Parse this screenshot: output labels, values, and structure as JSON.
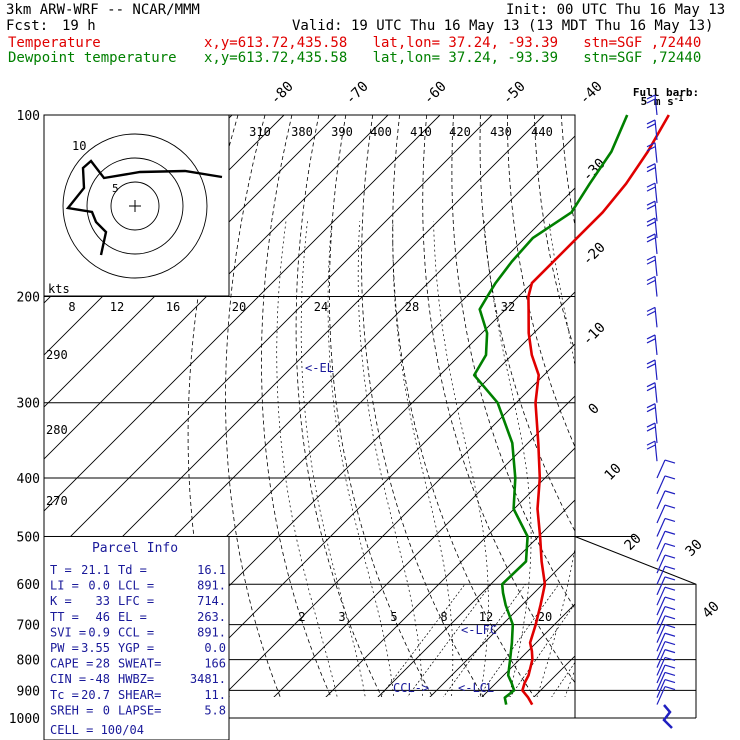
{
  "header": {
    "model": "3km ARW-WRF -- NCAR/MMM",
    "init": "Init: 00 UTC Thu 16 May 13",
    "fcst_label": "Fcst:",
    "fcst_value": "19 h",
    "valid": "Valid: 19 UTC Thu 16 May 13 (13 MDT Thu 16 May 13)",
    "temp_label": "Temperature",
    "dew_label": "Dewpoint temperature",
    "location_info": "x,y=613.72,435.58   lat,lon= 37.24, -93.39   stn=SGF ,72440"
  },
  "colors": {
    "temperature": "#e00000",
    "dewpoint": "#008000",
    "barbs": "#2020c0",
    "text": "#000000"
  },
  "chart_data": {
    "type": "skew-t",
    "pressure_axis_hpa": [
      100,
      200,
      300,
      400,
      500,
      600,
      700,
      800,
      900,
      1000
    ],
    "isotherm_labels_c": [
      -80,
      -70,
      -60,
      -50,
      -40,
      -30,
      -20,
      -10,
      0,
      10,
      20,
      30,
      40
    ],
    "theta_labels_k": [
      310,
      380,
      390,
      400,
      410,
      420,
      430,
      440
    ],
    "mixing_ratio_labels_top": [
      8,
      12,
      16,
      20,
      24,
      28,
      32
    ],
    "mixing_ratio_labels_bottom": [
      2,
      3,
      5,
      8,
      12,
      20
    ],
    "side_theta_labels": [
      290,
      280,
      270
    ],
    "temperature": {
      "name": "Temperature",
      "points": [
        [
          950,
          21.1
        ],
        [
          925,
          19
        ],
        [
          900,
          16.5
        ],
        [
          875,
          15.5
        ],
        [
          850,
          14.8
        ],
        [
          800,
          12.5
        ],
        [
          775,
          10.8
        ],
        [
          750,
          8.8
        ],
        [
          700,
          6.4
        ],
        [
          650,
          3.6
        ],
        [
          600,
          0.4
        ],
        [
          550,
          -4.6
        ],
        [
          500,
          -9.7
        ],
        [
          450,
          -15.5
        ],
        [
          400,
          -21
        ],
        [
          350,
          -28
        ],
        [
          300,
          -36.3
        ],
        [
          270,
          -41
        ],
        [
          250,
          -46.2
        ],
        [
          230,
          -51
        ],
        [
          210,
          -55.6
        ],
        [
          200,
          -58.1
        ],
        [
          190,
          -60
        ],
        [
          170,
          -60
        ],
        [
          160,
          -60
        ],
        [
          145,
          -60
        ],
        [
          130,
          -61
        ],
        [
          115,
          -63
        ],
        [
          100,
          -66
        ]
      ]
    },
    "dewpoint": {
      "name": "Dewpoint temperature",
      "points": [
        [
          950,
          16.1
        ],
        [
          925,
          14.5
        ],
        [
          900,
          14.9
        ],
        [
          875,
          13
        ],
        [
          850,
          10.9
        ],
        [
          800,
          8.2
        ],
        [
          750,
          5.3
        ],
        [
          700,
          2
        ],
        [
          650,
          -3.1
        ],
        [
          620,
          -6
        ],
        [
          600,
          -7.8
        ],
        [
          550,
          -7.6
        ],
        [
          500,
          -12.1
        ],
        [
          450,
          -20.1
        ],
        [
          400,
          -25.7
        ],
        [
          350,
          -33
        ],
        [
          300,
          -43.6
        ],
        [
          270,
          -53.4
        ],
        [
          250,
          -55
        ],
        [
          230,
          -59
        ],
        [
          210,
          -65
        ],
        [
          200,
          -66
        ],
        [
          190,
          -67
        ],
        [
          175,
          -68
        ],
        [
          160,
          -68.5
        ],
        [
          145,
          -66
        ],
        [
          130,
          -68
        ],
        [
          115,
          -70
        ],
        [
          100,
          -74
        ]
      ]
    },
    "annotations": [
      {
        "label": "<-EL",
        "pressure": 263
      },
      {
        "label": "<-LFC",
        "pressure": 714
      },
      {
        "label": "<-LCL",
        "pressure": 891
      },
      {
        "label": "CCL->",
        "pressure": 891
      }
    ],
    "hodograph": {
      "units_label": "kts",
      "ring_labels": [
        "5",
        "10"
      ]
    },
    "wind_barbs": {
      "title": "Full barb:",
      "subtitle": "5 m s",
      "superscript": "-1",
      "pressures": [
        950,
        925,
        900,
        875,
        850,
        825,
        800,
        775,
        750,
        725,
        700,
        675,
        650,
        625,
        600,
        575,
        550,
        525,
        500,
        475,
        450,
        425,
        400,
        375,
        350,
        325,
        300,
        275,
        250,
        225,
        200,
        185,
        170,
        160,
        150,
        140,
        130,
        120,
        110,
        100
      ]
    }
  },
  "parcel_info": {
    "title": "Parcel Info",
    "rows": [
      [
        "T  =",
        "21.1",
        "Td =",
        "16.1"
      ],
      [
        "LI =",
        "0.0",
        "LCL =",
        "891."
      ],
      [
        "K  =",
        "33",
        "LFC =",
        "714."
      ],
      [
        "TT =",
        "46",
        "EL  =",
        "263."
      ],
      [
        "SVI =",
        "0.9",
        "CCL =",
        "891."
      ],
      [
        "PW =",
        "3.55",
        "YGP =",
        "0.0"
      ],
      [
        "CAPE =",
        "28",
        "SWEAT=",
        "166"
      ],
      [
        "CIN =",
        "-48",
        "HWBZ=",
        "3481."
      ],
      [
        "Tc =",
        "20.7",
        "SHEAR=",
        "11."
      ],
      [
        "SREH =",
        "0",
        "LAPSE=",
        "5.8"
      ]
    ],
    "cell": "CELL = 100/04"
  }
}
